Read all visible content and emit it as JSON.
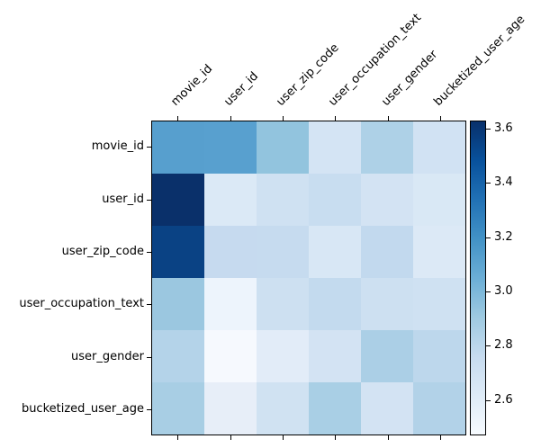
{
  "figure": {
    "background": "#ffffff",
    "text_color": "#000000",
    "axes_border_color": "#000000"
  },
  "chart_data": {
    "type": "heatmap",
    "title": "",
    "xlabel": "",
    "ylabel": "",
    "colormap": "Blues",
    "grid": false,
    "x_labels": [
      "movie_id",
      "user_id",
      "user_zip_code",
      "user_occupation_text",
      "user_gender",
      "bucketized_user_age"
    ],
    "y_labels": [
      "movie_id",
      "user_id",
      "user_zip_code",
      "user_occupation_text",
      "user_gender",
      "bucketized_user_age"
    ],
    "values": [
      [
        3.12,
        3.12,
        2.94,
        2.68,
        2.85,
        2.69
      ],
      [
        3.63,
        2.63,
        2.71,
        2.75,
        2.68,
        2.65
      ],
      [
        3.55,
        2.76,
        2.76,
        2.65,
        2.77,
        2.63
      ],
      [
        2.91,
        2.53,
        2.72,
        2.77,
        2.72,
        2.71
      ],
      [
        2.82,
        2.48,
        2.59,
        2.68,
        2.86,
        2.79
      ],
      [
        2.87,
        2.56,
        2.7,
        2.87,
        2.68,
        2.83
      ]
    ],
    "cell_colors": [
      [
        "#579fce",
        "#58a0cf",
        "#92c4de",
        "#d4e4f4",
        "#aed1e7",
        "#d1e2f3"
      ],
      [
        "#0a306a",
        "#dbe9f6",
        "#cfe1f2",
        "#c8ddf0",
        "#d3e3f3",
        "#d9e8f5"
      ],
      [
        "#0a4284",
        "#c6daef",
        "#c6dbef",
        "#d8e7f5",
        "#c2d9ee",
        "#dce9f6"
      ],
      [
        "#9bc7e0",
        "#edf4fc",
        "#cde0f1",
        "#c3daee",
        "#cde0f1",
        "#cfe1f2"
      ],
      [
        "#b4d3e9",
        "#f6f9fe",
        "#e2ecf8",
        "#d3e3f3",
        "#abcfe6",
        "#bdd7ec"
      ],
      [
        "#a8cee4",
        "#e7eef8",
        "#d0e2f2",
        "#a9cfe5",
        "#d3e3f3",
        "#b2d2e8"
      ]
    ],
    "colormap_stops": [
      "#f7fbff",
      "#deebf7",
      "#c6dbef",
      "#9ecae1",
      "#6baed6",
      "#4292c6",
      "#2171b5",
      "#08519c",
      "#08306b"
    ],
    "colorbar": {
      "vmin": 2.47,
      "vmax": 3.63,
      "tick_labels": [
        "2.6",
        "2.8",
        "3.0",
        "3.2",
        "3.4",
        "3.6"
      ],
      "tick_values": [
        2.6,
        2.8,
        3.0,
        3.2,
        3.4,
        3.6
      ],
      "position": "right"
    }
  }
}
